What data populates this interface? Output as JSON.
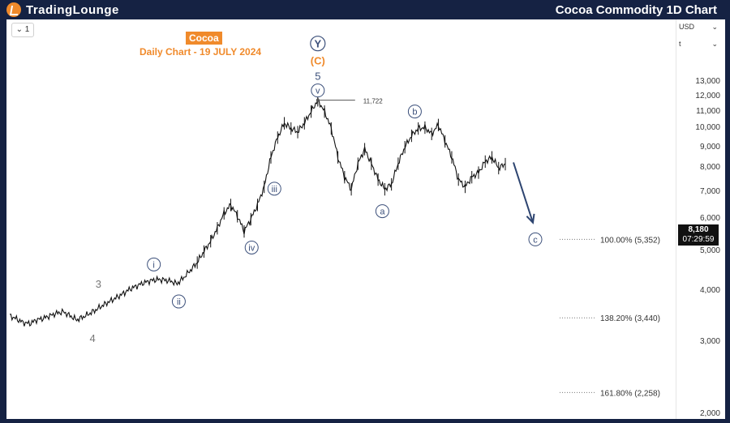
{
  "header": {
    "logo_text": "TradingLounge",
    "title": "Cocoa Commodity 1D Chart"
  },
  "toolbar": {
    "interval": "1"
  },
  "price_axis": {
    "currency_select": "USD",
    "scale_select": "t",
    "current_price": "8,180",
    "countdown": "07:29:59",
    "ticks": [
      "13,000",
      "12,000",
      "11,000",
      "10,000",
      "9,000",
      "8,000",
      "7,000",
      "6,000",
      "5,000",
      "4,000",
      "3,000",
      "2,000"
    ]
  },
  "annotations": {
    "badge": "Cocoa",
    "subtitle": "Daily Chart - 19 JULY 2024",
    "peak_value": "11,722",
    "wave_labels": {
      "Y": "Y",
      "C": "(C)",
      "five": "5",
      "v": "v",
      "b": "b",
      "iii": "iii",
      "iv": "iv",
      "a": "a",
      "c": "c",
      "i": "i",
      "ii": "ii",
      "three": "3",
      "four": "4"
    },
    "fib_levels": [
      "100.00% (5,352)",
      "138.20% (3,440)",
      "161.80% (2,258)"
    ]
  },
  "colors": {
    "brand_navy": "#152243",
    "accent_orange": "#f08a2b",
    "wave_blue": "#3b4f7a",
    "candle": "#111111",
    "forecast_arrow": "#2d4470"
  },
  "chart_data": {
    "type": "line",
    "title": "Cocoa",
    "subtitle": "Daily Chart - 19 JULY 2024",
    "ylabel": "",
    "ylim": [
      2000,
      13500
    ],
    "y_scale": "log",
    "grid": false,
    "series": [
      {
        "values": [
          3480,
          3420,
          3350,
          3330,
          3400,
          3430,
          3480,
          3530,
          3560,
          3480,
          3400,
          3460,
          3530,
          3610,
          3700,
          3780,
          3860,
          3950,
          4050,
          4120,
          4190,
          4240,
          4270,
          4260,
          4230,
          4170,
          4320,
          4500,
          4700,
          5000,
          5300,
          5700,
          6200,
          6500,
          6100,
          5600,
          6000,
          6500,
          7200,
          8500,
          9500,
          10300,
          10000,
          9800,
          10300,
          11000,
          11722,
          11000,
          10000,
          8500,
          7600,
          7100,
          8200,
          8900,
          8200,
          7500,
          7100,
          7300,
          8200,
          9000,
          9600,
          10000,
          10050,
          9700,
          10200,
          9300,
          8500,
          7500,
          7200,
          7600,
          7800,
          8300,
          8500,
          8000,
          8180
        ]
      }
    ],
    "forecast_arrow": {
      "from": 8180,
      "to": 6100
    },
    "annotation_points": {
      "three": 3700,
      "four": 3350,
      "i": 4320,
      "ii": 4170,
      "iii": 6500,
      "iv": 5600,
      "peak": 11722,
      "a": 7000,
      "b": 10900,
      "c": 5352
    },
    "fib_values": [
      5352,
      3440,
      2258
    ]
  }
}
